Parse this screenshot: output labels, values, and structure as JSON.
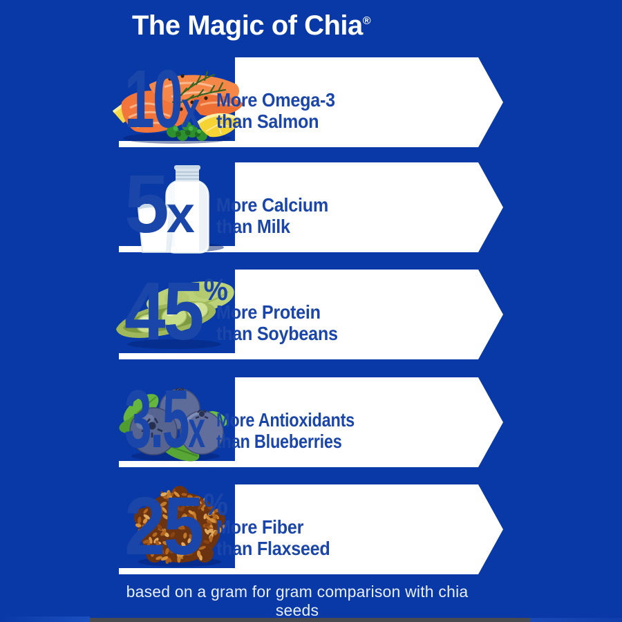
{
  "title": {
    "text": "The Magic of Chia",
    "reg": "®"
  },
  "rows": [
    {
      "icon": "salmon",
      "value": "10",
      "unit": "x",
      "line1": "More Omega-3",
      "line2": "than Salmon"
    },
    {
      "icon": "milk",
      "value": "5",
      "unit": "x",
      "line1": "More Calcium",
      "line2": "than Milk"
    },
    {
      "icon": "soybeans",
      "value": "45",
      "unit": "%",
      "line1": "More Protein",
      "line2": "than Soybeans"
    },
    {
      "icon": "blueberries",
      "value": "3.5",
      "unit": "x",
      "line1": "More Antioxidants",
      "line2": "than Blueberries"
    },
    {
      "icon": "flaxseed",
      "value": "25",
      "unit": "%",
      "line1": "More Fiber",
      "line2": "than Flaxseed"
    }
  ],
  "footnote": {
    "text": "based on a gram for gram comparison with chia seeds"
  },
  "colors": {
    "background": "#0839A6",
    "accent_text": "#1B46A9",
    "banner": "#FFFFFF",
    "footnote_text": "#E9EFFA",
    "bottom_strip": "#4A4B4F"
  }
}
